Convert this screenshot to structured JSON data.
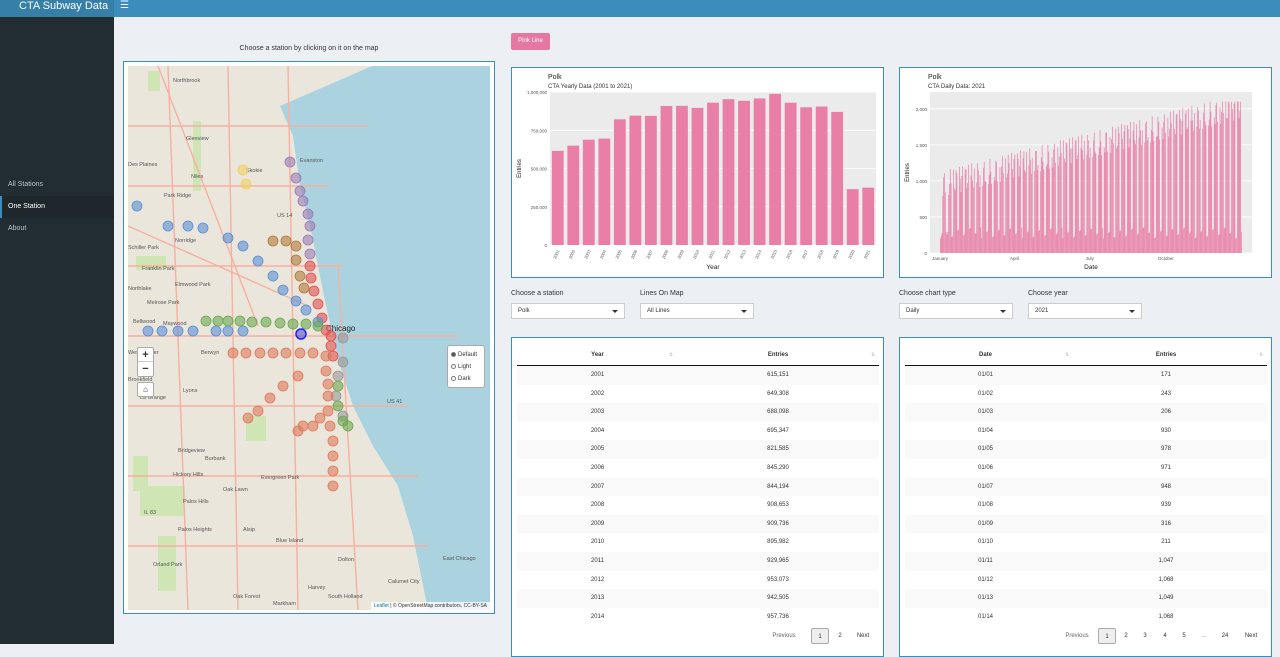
{
  "app": {
    "title": "CTA Subway Data",
    "menu_icon": "hamburger-icon"
  },
  "sidebar": {
    "items": [
      {
        "label": "All Stations"
      },
      {
        "label": "One Station",
        "active": true
      },
      {
        "label": "About"
      }
    ]
  },
  "map": {
    "caption": "Choose a station by clicking on it on the map",
    "zoom_in": "+",
    "zoom_out": "−",
    "home": "⌂",
    "layers": [
      {
        "label": "Default",
        "selected": true
      },
      {
        "label": "Light",
        "selected": false
      },
      {
        "label": "Dark",
        "selected": false
      }
    ],
    "attribution_leaflet": "Leaflet",
    "attribution_text": " | © OpenStreetMap contributors, CC-BY-SA",
    "place_labels": [
      "Northbrook",
      "Glenview",
      "Des Plaines",
      "Skokie",
      "Niles",
      "Evanston",
      "Park Ridge",
      "Norridge",
      "Schiller Park",
      "Franklin Park",
      "Elmwood Park",
      "Northlake",
      "Melrose Park",
      "Maywood",
      "Bellwood",
      "Berwyn",
      "Westchester",
      "Brookfield",
      "La Grange",
      "Lyons",
      "Burbank",
      "Bridgeview",
      "Hickory Hills",
      "Oak Lawn",
      "Evergreen Park",
      "Palos Hills",
      "Palos Heights",
      "Alsip",
      "Blue Island",
      "Dolton",
      "Orland Park",
      "Oak Forest",
      "Markham",
      "Harvey",
      "South Holland",
      "Calumet City",
      "East Chicago",
      "Chicago",
      "US 14",
      "US 41",
      "IL 83"
    ]
  },
  "line_button": {
    "label": "Pink Line"
  },
  "yearly_chart": {
    "station": "Polk",
    "subtitle": "CTA Yearly Data (2001 to 2021)"
  },
  "daily_chart": {
    "station": "Polk",
    "subtitle": "CTA Daily Data: 2021"
  },
  "chart_data": [
    {
      "type": "bar",
      "title": "Polk",
      "subtitle": "CTA Yearly Data (2001 to 2021)",
      "xlabel": "Year",
      "ylabel": "Entries",
      "categories": [
        "2001",
        "2002",
        "2003",
        "2004",
        "2005",
        "2006",
        "2007",
        "2008",
        "2009",
        "2010",
        "2011",
        "2012",
        "2013",
        "2014",
        "2015",
        "2016",
        "2017",
        "2018",
        "2019",
        "2020",
        "2021"
      ],
      "values": [
        615151,
        649308,
        688098,
        695347,
        821585,
        845290,
        844194,
        908653,
        909736,
        895982,
        929965,
        953073,
        942505,
        957736,
        988000,
        930000,
        900000,
        905000,
        870000,
        365000,
        375000
      ],
      "ylim": [
        0,
        1000000
      ],
      "yticks": [
        "0",
        "250,000",
        "500,000",
        "750,000",
        "1,000,000"
      ],
      "color": "#e97fa7",
      "grid": true
    },
    {
      "type": "bar",
      "title": "Polk",
      "subtitle": "CTA Daily Data: 2021",
      "xlabel": "Date",
      "ylabel": "Entries",
      "x_range": [
        "2021-01-01",
        "2021-12-31"
      ],
      "xticks": [
        "January",
        "April",
        "July",
        "October"
      ],
      "ylim": [
        0,
        2000
      ],
      "yticks": [
        "0",
        "500",
        "1,000",
        "1,500",
        "2,000"
      ],
      "color": "#e97fa7",
      "grid": true
    }
  ],
  "controls": {
    "station": {
      "label": "Choose a station",
      "value": "Polk"
    },
    "lines": {
      "label": "Lines On Map",
      "value": "All Lines"
    },
    "chart_type": {
      "label": "Choose chart type",
      "value": "Daily"
    },
    "year": {
      "label": "Choose year",
      "value": "2021"
    }
  },
  "yearly_table": {
    "columns": [
      "Year",
      "Entries"
    ],
    "rows": [
      [
        "2001",
        "615,151"
      ],
      [
        "2002",
        "649,308"
      ],
      [
        "2003",
        "688,098"
      ],
      [
        "2004",
        "695,347"
      ],
      [
        "2005",
        "821,585"
      ],
      [
        "2006",
        "845,290"
      ],
      [
        "2007",
        "844,194"
      ],
      [
        "2008",
        "908,653"
      ],
      [
        "2009",
        "909,736"
      ],
      [
        "2010",
        "895,982"
      ],
      [
        "2011",
        "929,965"
      ],
      [
        "2012",
        "953,073"
      ],
      [
        "2013",
        "942,505"
      ],
      [
        "2014",
        "957,736"
      ]
    ],
    "pager": {
      "previous": "Previous",
      "pages": [
        "1",
        "2"
      ],
      "current": "1",
      "next": "Next"
    }
  },
  "daily_table": {
    "columns": [
      "Date",
      "Entries"
    ],
    "rows": [
      [
        "01/01",
        "171"
      ],
      [
        "01/02",
        "243"
      ],
      [
        "01/03",
        "206"
      ],
      [
        "01/04",
        "930"
      ],
      [
        "01/05",
        "978"
      ],
      [
        "01/06",
        "971"
      ],
      [
        "01/07",
        "948"
      ],
      [
        "01/08",
        "939"
      ],
      [
        "01/09",
        "316"
      ],
      [
        "01/10",
        "211"
      ],
      [
        "01/11",
        "1,047"
      ],
      [
        "01/12",
        "1,068"
      ],
      [
        "01/13",
        "1,049"
      ],
      [
        "01/14",
        "1,068"
      ]
    ],
    "pager": {
      "previous": "Previous",
      "pages": [
        "1",
        "2",
        "3",
        "4",
        "5",
        "…",
        "24"
      ],
      "current": "1",
      "next": "Next"
    }
  }
}
